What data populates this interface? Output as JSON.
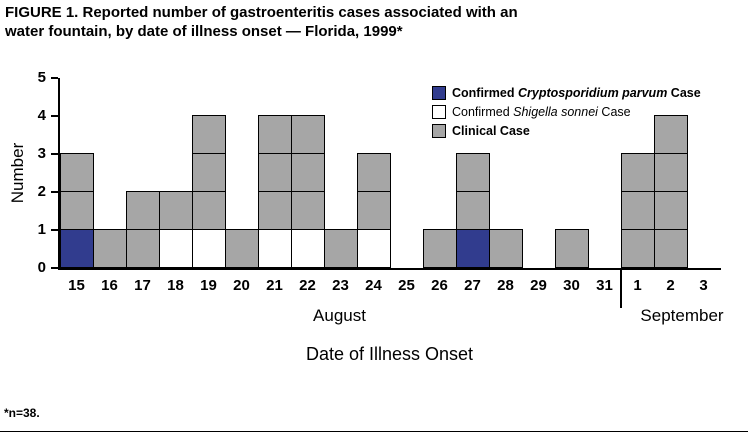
{
  "title": {
    "line1": "FIGURE 1. Reported number of gastroenteritis cases associated with an",
    "line2": "water fountain, by date of illness onset — Florida, 1999*"
  },
  "footnote": "*n=38.",
  "legend": {
    "items": [
      {
        "prefix": "Confirmed ",
        "italic": "Cryptosporidium parvum",
        "suffix": " Case",
        "bold": true,
        "color": "#313c8e"
      },
      {
        "prefix": "Confirmed ",
        "italic": "Shigella sonnei",
        "suffix": " Case",
        "bold": false,
        "color": "#ffffff"
      },
      {
        "prefix": "Clinical Case",
        "italic": "",
        "suffix": "",
        "bold": true,
        "color": "#a6a6a6"
      }
    ]
  },
  "chart_data": {
    "type": "bar",
    "title": "Reported number of gastroenteritis cases associated with an water fountain, by date of illness onset — Florida, 1999",
    "ylabel": "Number",
    "xlabel": "Date of Illness Onset",
    "ylim": [
      0,
      5
    ],
    "yticks": [
      0,
      1,
      2,
      3,
      4,
      5
    ],
    "categories": [
      "15",
      "16",
      "17",
      "18",
      "19",
      "20",
      "21",
      "22",
      "23",
      "24",
      "25",
      "26",
      "27",
      "28",
      "29",
      "30",
      "31",
      "1",
      "2",
      "3"
    ],
    "month_groups": [
      {
        "label": "August",
        "start": "15",
        "end": "31"
      },
      {
        "label": "September",
        "start": "1",
        "end": "3"
      }
    ],
    "stacked": true,
    "series": [
      {
        "name": "Confirmed Cryptosporidium parvum Case",
        "short": "crypto",
        "color": "#313c8e",
        "values": [
          1,
          0,
          0,
          0,
          0,
          0,
          0,
          0,
          0,
          0,
          0,
          0,
          1,
          0,
          0,
          0,
          0,
          0,
          0,
          0
        ]
      },
      {
        "name": "Confirmed Shigella sonnei Case",
        "short": "shigella",
        "color": "#ffffff",
        "values": [
          0,
          0,
          0,
          1,
          1,
          0,
          1,
          1,
          0,
          1,
          0,
          0,
          0,
          0,
          0,
          0,
          0,
          0,
          0,
          0
        ]
      },
      {
        "name": "Clinical Case",
        "short": "clinical",
        "color": "#a6a6a6",
        "values": [
          2,
          1,
          2,
          1,
          3,
          1,
          3,
          3,
          1,
          2,
          0,
          1,
          2,
          1,
          0,
          1,
          0,
          3,
          4,
          0
        ]
      }
    ],
    "totals": [
      3,
      1,
      2,
      2,
      4,
      1,
      4,
      4,
      1,
      3,
      0,
      1,
      3,
      1,
      0,
      1,
      0,
      3,
      4,
      0
    ],
    "n_total": 38,
    "legend_position": "top-right-inside",
    "grid": false
  }
}
